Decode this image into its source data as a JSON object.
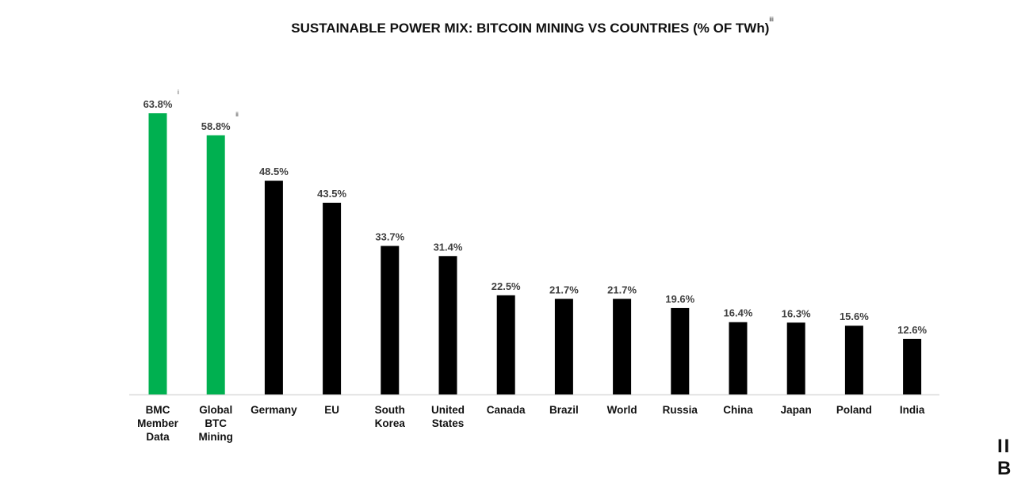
{
  "chart_data": {
    "type": "bar",
    "title": "SUSTAINABLE POWER MIX: BITCOIN MINING VS COUNTRIES (% OF TWh)",
    "title_footnote": "iii",
    "categories": [
      "BMC Member Data",
      "Global BTC Mining",
      "Germany",
      "EU",
      "South Korea",
      "United States",
      "Canada",
      "Brazil",
      "World",
      "Russia",
      "China",
      "Japan",
      "Poland",
      "India"
    ],
    "category_lines": [
      [
        "BMC",
        "Member",
        "Data"
      ],
      [
        "Global",
        "BTC",
        "Mining"
      ],
      [
        "Germany"
      ],
      [
        "EU"
      ],
      [
        "South",
        "Korea"
      ],
      [
        "United",
        "States"
      ],
      [
        "Canada"
      ],
      [
        "Brazil"
      ],
      [
        "World"
      ],
      [
        "Russia"
      ],
      [
        "China"
      ],
      [
        "Japan"
      ],
      [
        "Poland"
      ],
      [
        "India"
      ]
    ],
    "values": [
      63.8,
      58.8,
      48.5,
      43.5,
      33.7,
      31.4,
      22.5,
      21.7,
      21.7,
      19.6,
      16.4,
      16.3,
      15.6,
      12.6
    ],
    "value_labels": [
      "63.8%",
      "58.8%",
      "48.5%",
      "43.5%",
      "33.7%",
      "31.4%",
      "22.5%",
      "21.7%",
      "21.7%",
      "19.6%",
      "16.4%",
      "16.3%",
      "15.6%",
      "12.6%"
    ],
    "footnotes": [
      "i",
      "ii",
      "",
      "",
      "",
      "",
      "",
      "",
      "",
      "",
      "",
      "",
      "",
      ""
    ],
    "colors": [
      "#00b050",
      "#00b050",
      "#000000",
      "#000000",
      "#000000",
      "#000000",
      "#000000",
      "#000000",
      "#000000",
      "#000000",
      "#000000",
      "#000000",
      "#000000",
      "#000000"
    ],
    "ylim": [
      0,
      64
    ],
    "grid": false,
    "axis_color": "#d9d9d9"
  },
  "logo_text": "IIB"
}
